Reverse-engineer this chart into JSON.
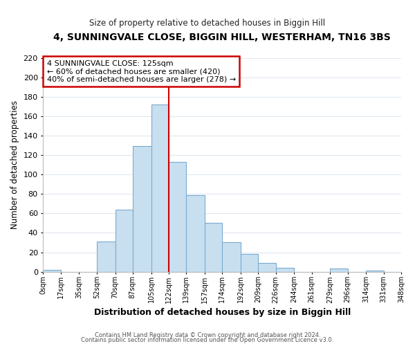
{
  "title": "4, SUNNINGVALE CLOSE, BIGGIN HILL, WESTERHAM, TN16 3BS",
  "subtitle": "Size of property relative to detached houses in Biggin Hill",
  "xlabel": "Distribution of detached houses by size in Biggin Hill",
  "ylabel": "Number of detached properties",
  "bin_edges": [
    0,
    17,
    35,
    52,
    70,
    87,
    105,
    122,
    139,
    157,
    174,
    192,
    209,
    226,
    244,
    261,
    279,
    296,
    314,
    331,
    348
  ],
  "bar_heights": [
    2,
    0,
    0,
    31,
    64,
    129,
    172,
    113,
    79,
    50,
    30,
    18,
    9,
    4,
    0,
    0,
    3,
    0,
    1,
    0
  ],
  "bar_color": "#c8dff0",
  "bar_edge_color": "#7aaacf",
  "reference_line_x": 122,
  "reference_line_color": "#cc0000",
  "tick_labels": [
    "0sqm",
    "17sqm",
    "35sqm",
    "52sqm",
    "70sqm",
    "87sqm",
    "105sqm",
    "122sqm",
    "139sqm",
    "157sqm",
    "174sqm",
    "192sqm",
    "209sqm",
    "226sqm",
    "244sqm",
    "261sqm",
    "279sqm",
    "296sqm",
    "314sqm",
    "331sqm",
    "348sqm"
  ],
  "ylim": [
    0,
    220
  ],
  "yticks": [
    0,
    20,
    40,
    60,
    80,
    100,
    120,
    140,
    160,
    180,
    200,
    220
  ],
  "ann_line1": "4 SUNNINGVALE CLOSE: 125sqm",
  "ann_line2": "← 60% of detached houses are smaller (420)",
  "ann_line3": "40% of semi-detached houses are larger (278) →",
  "footer_line1": "Contains HM Land Registry data © Crown copyright and database right 2024.",
  "footer_line2": "Contains public sector information licensed under the Open Government Licence v3.0.",
  "bg_color": "#ffffff",
  "plot_bg_color": "#ffffff",
  "grid_color": "#e0e8f0"
}
